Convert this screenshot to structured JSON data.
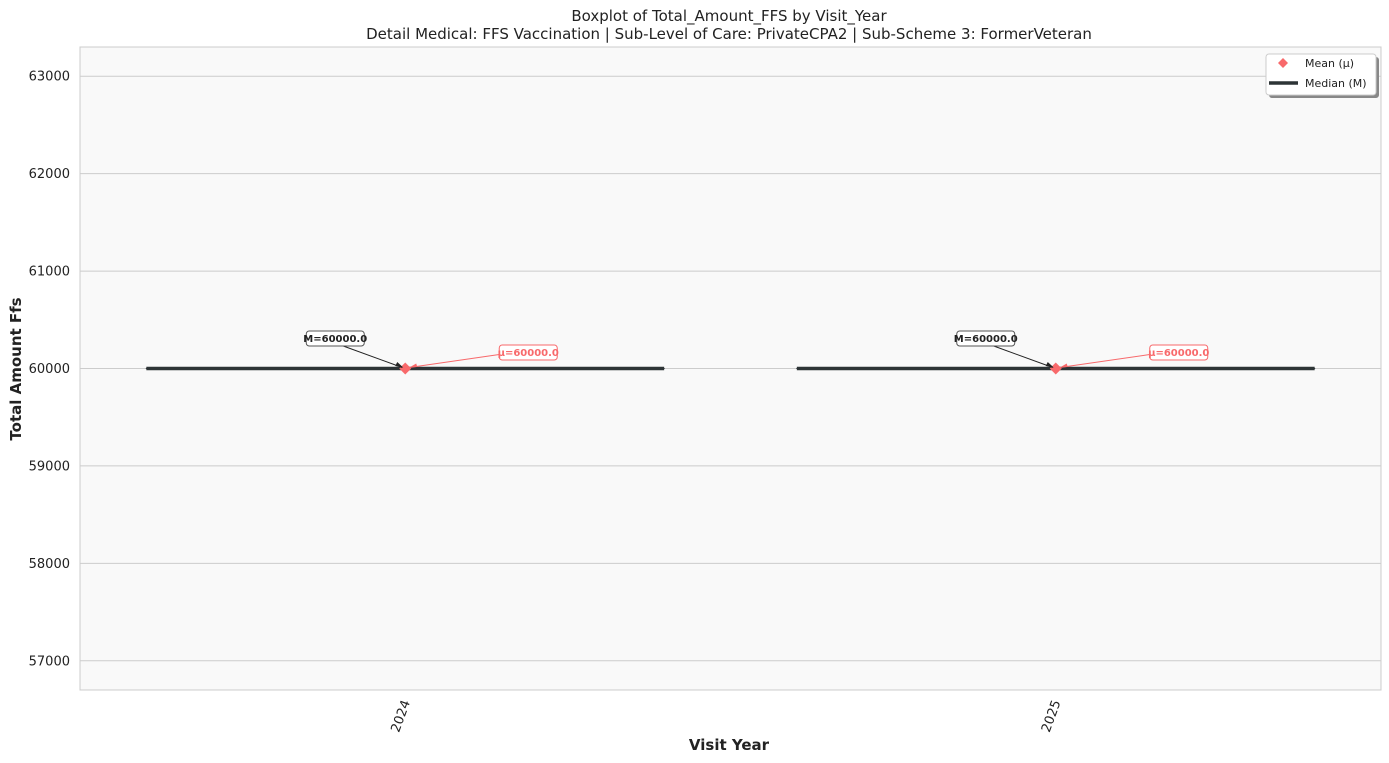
{
  "chart_data": {
    "type": "boxplot",
    "title": "Boxplot of Total_Amount_FFS by Visit_Year",
    "subtitle": "Detail Medical: FFS Vaccination | Sub-Level of Care: PrivateCPA2 | Sub-Scheme 3: FormerVeteran",
    "xlabel": "Visit Year",
    "ylabel": "Total Amount Ffs",
    "categories": [
      "2024",
      "2025"
    ],
    "series": [
      {
        "name": "Total_Amount_FFS",
        "boxes": [
          {
            "category": "2024",
            "min": 60000,
            "q1": 60000,
            "median": 60000,
            "q3": 60000,
            "max": 60000,
            "mean": 60000
          },
          {
            "category": "2025",
            "min": 60000,
            "q1": 60000,
            "median": 60000,
            "q3": 60000,
            "max": 60000,
            "mean": 60000
          }
        ]
      }
    ],
    "annotations": [
      {
        "category": "2024",
        "kind": "median",
        "text": "M=60000.0"
      },
      {
        "category": "2024",
        "kind": "mean",
        "text": "μ=60000.0"
      },
      {
        "category": "2025",
        "kind": "median",
        "text": "M=60000.0"
      },
      {
        "category": "2025",
        "kind": "mean",
        "text": "μ=60000.0"
      }
    ],
    "ylim": [
      56700,
      63300
    ],
    "yticks": [
      57000,
      58000,
      59000,
      60000,
      61000,
      62000,
      63000
    ],
    "grid": true,
    "legend": {
      "position": "top-right",
      "entries": [
        {
          "label": "Mean (μ)",
          "marker": "diamond"
        },
        {
          "label": "Median (M)",
          "marker": "line"
        }
      ]
    },
    "colors": {
      "mean": "#f8696b",
      "median": "#2d3436",
      "plot_bg": "#f9f9f9",
      "grid": "#cccccc"
    }
  }
}
